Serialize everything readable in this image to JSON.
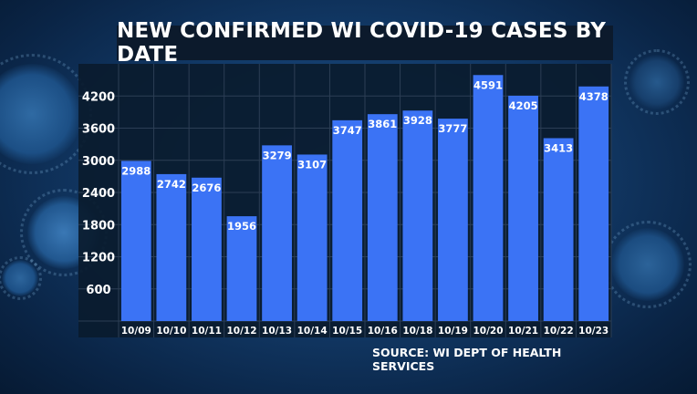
{
  "chart_data": {
    "type": "bar",
    "title": "NEW CONFIRMED WI COVID-19 CASES BY DATE",
    "source": "SOURCE: WI DEPT OF HEALTH SERVICES",
    "categories": [
      "10/09",
      "10/10",
      "10/11",
      "10/12",
      "10/13",
      "10/14",
      "10/15",
      "10/16",
      "10/18",
      "10/19",
      "10/20",
      "10/21",
      "10/22",
      "10/23"
    ],
    "values": [
      2988,
      2742,
      2676,
      1956,
      3279,
      3107,
      3747,
      3861,
      3928,
      3777,
      4591,
      4205,
      3413,
      4378
    ],
    "yticks": [
      "600",
      "1200",
      "1800",
      "2400",
      "3000",
      "3600",
      "4200"
    ],
    "ylim": [
      0,
      4800
    ],
    "grid": true,
    "bar_color": "#3b73f5",
    "plot_bg": "#0a1b2e",
    "label_color": "#ffffff"
  }
}
